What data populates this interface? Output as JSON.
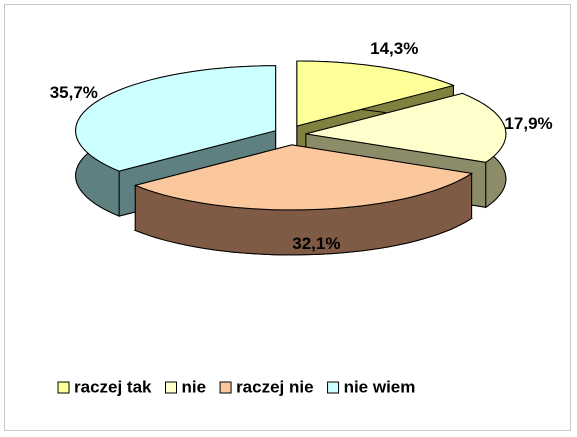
{
  "chart_data": {
    "type": "pie3d",
    "categories": [
      "raczej tak",
      "nie",
      "raczej nie",
      "nie wiem"
    ],
    "values": [
      14.3,
      17.9,
      32.1,
      35.7
    ],
    "value_labels": [
      "14,3%",
      "17,9%",
      "32,1%",
      "35,7%"
    ],
    "colors": [
      "#ffff99",
      "#ffffcc",
      "#fac89c",
      "#ccffff"
    ],
    "side_colors": [
      "#80803f",
      "#8c8c68",
      "#7f5a45",
      "#5f8080"
    ],
    "legend": "bottom"
  }
}
